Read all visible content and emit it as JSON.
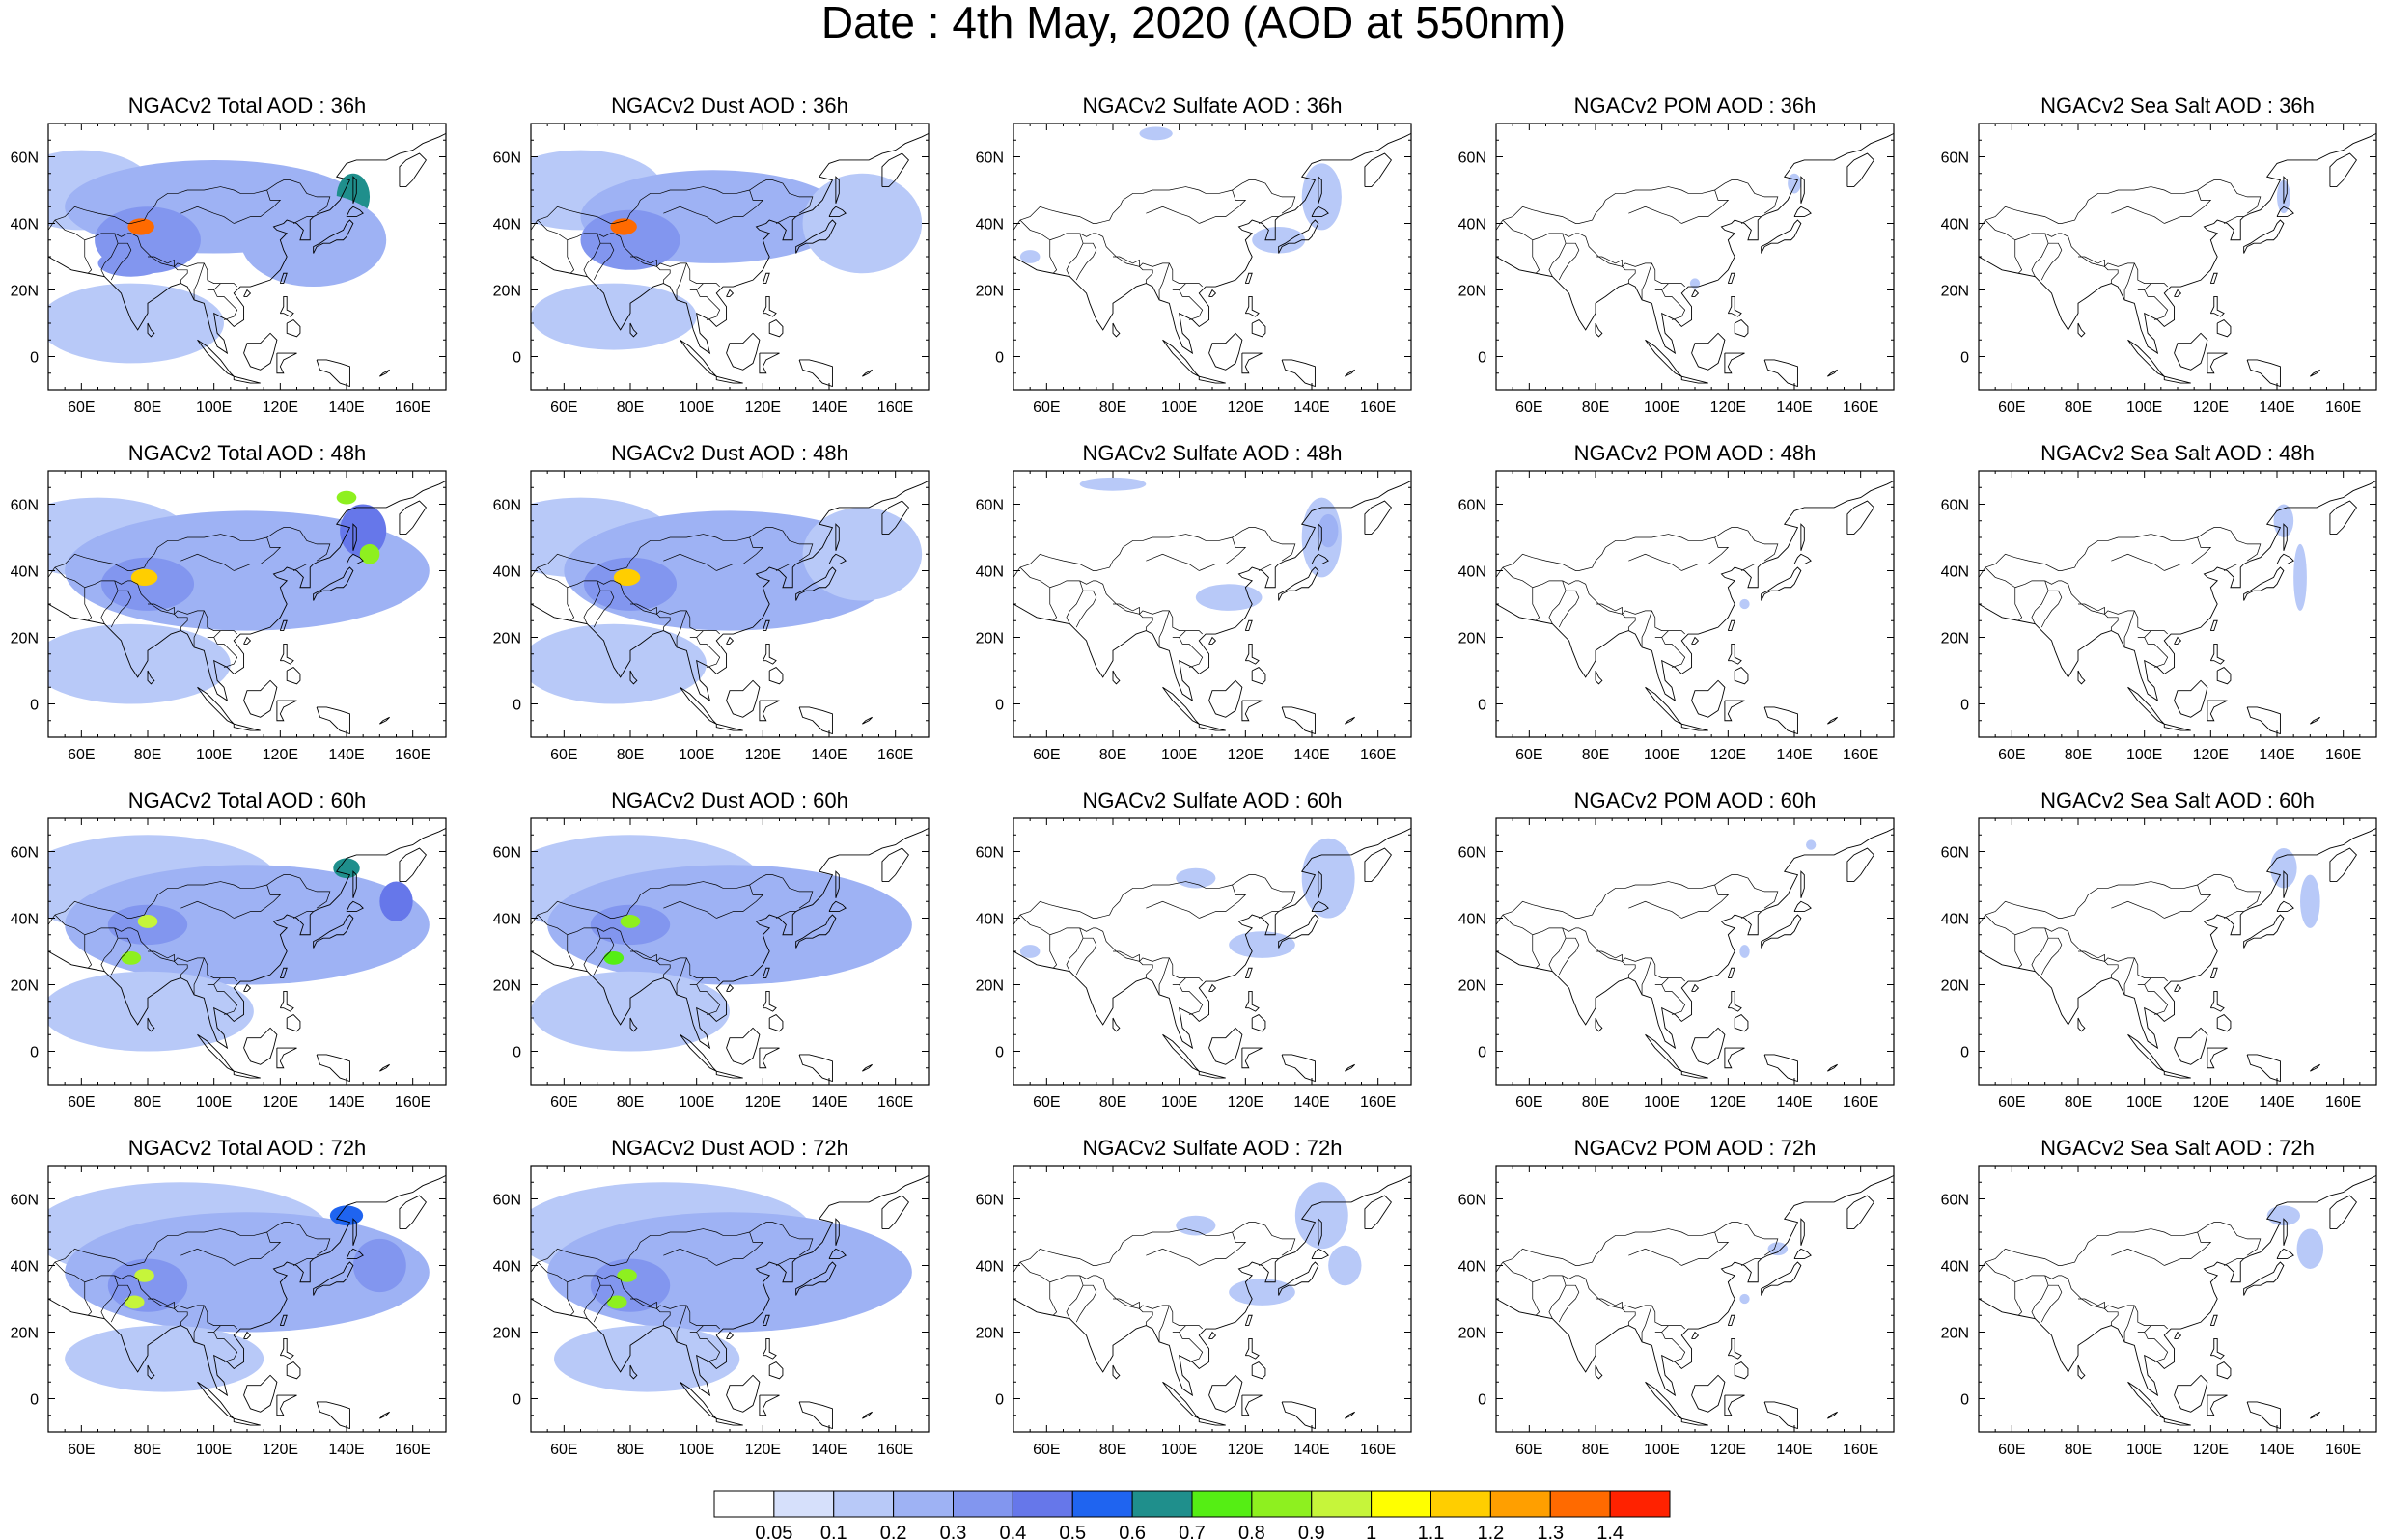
{
  "title": "Date : 4th May, 2020 (AOD at 550nm)",
  "species": [
    "Total",
    "Dust",
    "Sulfate",
    "POM",
    "Sea Salt"
  ],
  "forecast_hours": [
    "36h",
    "48h",
    "60h",
    "72h"
  ],
  "panels": [
    {
      "title": "NGACv2 Total AOD : 36h",
      "species": "Total",
      "hour": "36h"
    },
    {
      "title": "NGACv2 Dust AOD : 36h",
      "species": "Dust",
      "hour": "36h"
    },
    {
      "title": "NGACv2 Sulfate AOD : 36h",
      "species": "Sulfate",
      "hour": "36h"
    },
    {
      "title": "NGACv2 POM AOD : 36h",
      "species": "POM",
      "hour": "36h"
    },
    {
      "title": "NGACv2 Sea Salt AOD : 36h",
      "species": "Sea Salt",
      "hour": "36h"
    },
    {
      "title": "NGACv2 Total AOD : 48h",
      "species": "Total",
      "hour": "48h"
    },
    {
      "title": "NGACv2 Dust AOD : 48h",
      "species": "Dust",
      "hour": "48h"
    },
    {
      "title": "NGACv2 Sulfate AOD : 48h",
      "species": "Sulfate",
      "hour": "48h"
    },
    {
      "title": "NGACv2 POM AOD : 48h",
      "species": "POM",
      "hour": "48h"
    },
    {
      "title": "NGACv2 Sea Salt AOD : 48h",
      "species": "Sea Salt",
      "hour": "48h"
    },
    {
      "title": "NGACv2 Total AOD : 60h",
      "species": "Total",
      "hour": "60h"
    },
    {
      "title": "NGACv2 Dust AOD : 60h",
      "species": "Dust",
      "hour": "60h"
    },
    {
      "title": "NGACv2 Sulfate AOD : 60h",
      "species": "Sulfate",
      "hour": "60h"
    },
    {
      "title": "NGACv2 POM AOD : 60h",
      "species": "POM",
      "hour": "60h"
    },
    {
      "title": "NGACv2 Sea Salt AOD : 60h",
      "species": "Sea Salt",
      "hour": "60h"
    },
    {
      "title": "NGACv2 Total AOD : 72h",
      "species": "Total",
      "hour": "72h"
    },
    {
      "title": "NGACv2 Dust AOD : 72h",
      "species": "Dust",
      "hour": "72h"
    },
    {
      "title": "NGACv2 Sulfate AOD : 72h",
      "species": "Sulfate",
      "hour": "72h"
    },
    {
      "title": "NGACv2 POM AOD : 72h",
      "species": "POM",
      "hour": "72h"
    },
    {
      "title": "NGACv2 Sea Salt  AOD : 72h",
      "species": "Sea Salt",
      "hour": "72h"
    }
  ],
  "map_extent": {
    "lon_min": 50,
    "lon_max": 170,
    "lat_min": -10,
    "lat_max": 70
  },
  "x_ticks": [
    {
      "value": 60,
      "label": "60E"
    },
    {
      "value": 80,
      "label": "80E"
    },
    {
      "value": 100,
      "label": "100E"
    },
    {
      "value": 120,
      "label": "120E"
    },
    {
      "value": 140,
      "label": "140E"
    },
    {
      "value": 160,
      "label": "160E"
    }
  ],
  "y_ticks": [
    {
      "value": 0,
      "label": "0"
    },
    {
      "value": 20,
      "label": "20N"
    },
    {
      "value": 40,
      "label": "40N"
    },
    {
      "value": 60,
      "label": "60N"
    }
  ],
  "colorbar": {
    "labels": [
      "0.05",
      "0.1",
      "0.2",
      "0.3",
      "0.4",
      "0.5",
      "0.6",
      "0.7",
      "0.8",
      "0.9",
      "1",
      "1.1",
      "1.2",
      "1.3",
      "1.4"
    ],
    "colors": [
      "#ffffff",
      "#d6e0fb",
      "#b8c9f8",
      "#9eb2f4",
      "#8296ef",
      "#6677ea",
      "#1f64f0",
      "#1f8f8c",
      "#55ee14",
      "#8ef01f",
      "#c6f53a",
      "#ffff00",
      "#ffce00",
      "#ff9f00",
      "#ff6a00",
      "#ff2200"
    ]
  },
  "aod_fields": {
    "Total": {
      "36h": [
        {
          "lon": 60,
          "lat": 50,
          "value": 0.1,
          "rlon": 22,
          "rlat": 12
        },
        {
          "lon": 100,
          "lat": 45,
          "value": 0.2,
          "rlon": 45,
          "rlat": 14
        },
        {
          "lon": 80,
          "lat": 35,
          "value": 0.3,
          "rlon": 16,
          "rlat": 10
        },
        {
          "lon": 78,
          "lat": 39,
          "value": 1.3,
          "rlon": 4,
          "rlat": 2.5
        },
        {
          "lon": 75,
          "lat": 28,
          "value": 0.3,
          "rlon": 10,
          "rlat": 4
        },
        {
          "lon": 142,
          "lat": 48,
          "value": 0.6,
          "rlon": 5,
          "rlat": 7
        },
        {
          "lon": 130,
          "lat": 35,
          "value": 0.2,
          "rlon": 22,
          "rlat": 14
        },
        {
          "lon": 75,
          "lat": 10,
          "value": 0.1,
          "rlon": 28,
          "rlat": 12
        }
      ],
      "48h": [
        {
          "lon": 65,
          "lat": 50,
          "value": 0.1,
          "rlon": 28,
          "rlat": 12
        },
        {
          "lon": 110,
          "lat": 40,
          "value": 0.2,
          "rlon": 55,
          "rlat": 18
        },
        {
          "lon": 80,
          "lat": 36,
          "value": 0.3,
          "rlon": 14,
          "rlat": 8
        },
        {
          "lon": 79,
          "lat": 38,
          "value": 1.1,
          "rlon": 4,
          "rlat": 2.5
        },
        {
          "lon": 145,
          "lat": 52,
          "value": 0.4,
          "rlon": 7,
          "rlat": 8
        },
        {
          "lon": 147,
          "lat": 45,
          "value": 0.8,
          "rlon": 3,
          "rlat": 3
        },
        {
          "lon": 140,
          "lat": 62,
          "value": 0.8,
          "rlon": 3,
          "rlat": 2
        },
        {
          "lon": 75,
          "lat": 12,
          "value": 0.1,
          "rlon": 30,
          "rlat": 12
        }
      ],
      "60h": [
        {
          "lon": 80,
          "lat": 50,
          "value": 0.1,
          "rlon": 40,
          "rlat": 15
        },
        {
          "lon": 110,
          "lat": 38,
          "value": 0.2,
          "rlon": 55,
          "rlat": 18
        },
        {
          "lon": 80,
          "lat": 38,
          "value": 0.3,
          "rlon": 12,
          "rlat": 6
        },
        {
          "lon": 80,
          "lat": 39,
          "value": 0.9,
          "rlon": 3,
          "rlat": 2
        },
        {
          "lon": 75,
          "lat": 28,
          "value": 0.8,
          "rlon": 3,
          "rlat": 2
        },
        {
          "lon": 140,
          "lat": 55,
          "value": 0.6,
          "rlon": 4,
          "rlat": 3
        },
        {
          "lon": 155,
          "lat": 45,
          "value": 0.4,
          "rlon": 5,
          "rlat": 6
        },
        {
          "lon": 80,
          "lat": 12,
          "value": 0.1,
          "rlon": 32,
          "rlat": 12
        }
      ],
      "72h": [
        {
          "lon": 90,
          "lat": 50,
          "value": 0.1,
          "rlon": 45,
          "rlat": 15
        },
        {
          "lon": 110,
          "lat": 38,
          "value": 0.2,
          "rlon": 55,
          "rlat": 18
        },
        {
          "lon": 80,
          "lat": 34,
          "value": 0.3,
          "rlon": 12,
          "rlat": 8
        },
        {
          "lon": 79,
          "lat": 37,
          "value": 0.9,
          "rlon": 3,
          "rlat": 2
        },
        {
          "lon": 76,
          "lat": 29,
          "value": 0.9,
          "rlon": 3,
          "rlat": 2
        },
        {
          "lon": 140,
          "lat": 55,
          "value": 0.5,
          "rlon": 5,
          "rlat": 3
        },
        {
          "lon": 150,
          "lat": 40,
          "value": 0.3,
          "rlon": 8,
          "rlat": 8
        },
        {
          "lon": 85,
          "lat": 12,
          "value": 0.1,
          "rlon": 30,
          "rlat": 10
        }
      ]
    },
    "Dust": {
      "36h": [
        {
          "lon": 65,
          "lat": 50,
          "value": 0.1,
          "rlon": 25,
          "rlat": 12
        },
        {
          "lon": 105,
          "lat": 42,
          "value": 0.2,
          "rlon": 40,
          "rlat": 14
        },
        {
          "lon": 80,
          "lat": 35,
          "value": 0.3,
          "rlon": 15,
          "rlat": 9
        },
        {
          "lon": 78,
          "lat": 39,
          "value": 1.3,
          "rlon": 4,
          "rlat": 2.5
        },
        {
          "lon": 150,
          "lat": 40,
          "value": 0.1,
          "rlon": 18,
          "rlat": 15
        },
        {
          "lon": 75,
          "lat": 12,
          "value": 0.1,
          "rlon": 25,
          "rlat": 10
        }
      ],
      "48h": [
        {
          "lon": 65,
          "lat": 50,
          "value": 0.1,
          "rlon": 28,
          "rlat": 12
        },
        {
          "lon": 110,
          "lat": 40,
          "value": 0.2,
          "rlon": 50,
          "rlat": 18
        },
        {
          "lon": 80,
          "lat": 36,
          "value": 0.3,
          "rlon": 14,
          "rlat": 8
        },
        {
          "lon": 79,
          "lat": 38,
          "value": 1.1,
          "rlon": 4,
          "rlat": 2.5
        },
        {
          "lon": 150,
          "lat": 45,
          "value": 0.1,
          "rlon": 18,
          "rlat": 14
        },
        {
          "lon": 75,
          "lat": 12,
          "value": 0.1,
          "rlon": 28,
          "rlat": 12
        }
      ],
      "60h": [
        {
          "lon": 80,
          "lat": 50,
          "value": 0.1,
          "rlon": 40,
          "rlat": 15
        },
        {
          "lon": 110,
          "lat": 38,
          "value": 0.2,
          "rlon": 55,
          "rlat": 18
        },
        {
          "lon": 80,
          "lat": 38,
          "value": 0.3,
          "rlon": 12,
          "rlat": 6
        },
        {
          "lon": 80,
          "lat": 39,
          "value": 0.8,
          "rlon": 3,
          "rlat": 2
        },
        {
          "lon": 75,
          "lat": 28,
          "value": 0.7,
          "rlon": 3,
          "rlat": 2
        },
        {
          "lon": 80,
          "lat": 12,
          "value": 0.1,
          "rlon": 30,
          "rlat": 12
        }
      ],
      "72h": [
        {
          "lon": 90,
          "lat": 50,
          "value": 0.1,
          "rlon": 45,
          "rlat": 15
        },
        {
          "lon": 110,
          "lat": 38,
          "value": 0.2,
          "rlon": 55,
          "rlat": 18
        },
        {
          "lon": 80,
          "lat": 34,
          "value": 0.3,
          "rlon": 12,
          "rlat": 8
        },
        {
          "lon": 79,
          "lat": 37,
          "value": 0.8,
          "rlon": 3,
          "rlat": 2
        },
        {
          "lon": 76,
          "lat": 29,
          "value": 0.8,
          "rlon": 3,
          "rlat": 2
        },
        {
          "lon": 85,
          "lat": 12,
          "value": 0.1,
          "rlon": 28,
          "rlat": 10
        }
      ]
    },
    "Sulfate": {
      "36h": [
        {
          "lon": 143,
          "lat": 48,
          "value": 0.1,
          "rlon": 6,
          "rlat": 10
        },
        {
          "lon": 130,
          "lat": 35,
          "value": 0.1,
          "rlon": 8,
          "rlat": 4
        },
        {
          "lon": 93,
          "lat": 67,
          "value": 0.1,
          "rlon": 5,
          "rlat": 2
        },
        {
          "lon": 55,
          "lat": 30,
          "value": 0.1,
          "rlon": 3,
          "rlat": 2
        }
      ],
      "48h": [
        {
          "lon": 143,
          "lat": 50,
          "value": 0.1,
          "rlon": 6,
          "rlat": 12
        },
        {
          "lon": 145,
          "lat": 52,
          "value": 0.2,
          "rlon": 3,
          "rlat": 5
        },
        {
          "lon": 115,
          "lat": 32,
          "value": 0.1,
          "rlon": 10,
          "rlat": 4
        },
        {
          "lon": 80,
          "lat": 66,
          "value": 0.1,
          "rlon": 10,
          "rlat": 2
        }
      ],
      "60h": [
        {
          "lon": 145,
          "lat": 52,
          "value": 0.1,
          "rlon": 8,
          "rlat": 12
        },
        {
          "lon": 125,
          "lat": 32,
          "value": 0.1,
          "rlon": 10,
          "rlat": 4
        },
        {
          "lon": 105,
          "lat": 52,
          "value": 0.1,
          "rlon": 6,
          "rlat": 3
        },
        {
          "lon": 55,
          "lat": 30,
          "value": 0.1,
          "rlon": 3,
          "rlat": 2
        }
      ],
      "72h": [
        {
          "lon": 143,
          "lat": 55,
          "value": 0.1,
          "rlon": 8,
          "rlat": 10
        },
        {
          "lon": 150,
          "lat": 40,
          "value": 0.1,
          "rlon": 5,
          "rlat": 6
        },
        {
          "lon": 125,
          "lat": 32,
          "value": 0.1,
          "rlon": 10,
          "rlat": 4
        },
        {
          "lon": 105,
          "lat": 52,
          "value": 0.1,
          "rlon": 6,
          "rlat": 3
        }
      ]
    },
    "POM": {
      "36h": [
        {
          "lon": 140,
          "lat": 52,
          "value": 0.1,
          "rlon": 2,
          "rlat": 3
        },
        {
          "lon": 110,
          "lat": 22,
          "value": 0.1,
          "rlon": 1.5,
          "rlat": 1.5
        }
      ],
      "48h": [
        {
          "lon": 125,
          "lat": 30,
          "value": 0.1,
          "rlon": 1.5,
          "rlat": 1.5
        }
      ],
      "60h": [
        {
          "lon": 125,
          "lat": 30,
          "value": 0.1,
          "rlon": 1.5,
          "rlat": 2
        },
        {
          "lon": 145,
          "lat": 62,
          "value": 0.1,
          "rlon": 1.5,
          "rlat": 1.5
        }
      ],
      "72h": [
        {
          "lon": 135,
          "lat": 45,
          "value": 0.1,
          "rlon": 3,
          "rlat": 2
        },
        {
          "lon": 125,
          "lat": 30,
          "value": 0.1,
          "rlon": 1.5,
          "rlat": 1.5
        }
      ]
    },
    "Sea Salt": {
      "36h": [
        {
          "lon": 142,
          "lat": 48,
          "value": 0.1,
          "rlon": 2,
          "rlat": 5
        }
      ],
      "48h": [
        {
          "lon": 142,
          "lat": 55,
          "value": 0.1,
          "rlon": 3,
          "rlat": 5
        },
        {
          "lon": 147,
          "lat": 38,
          "value": 0.1,
          "rlon": 2,
          "rlat": 10
        }
      ],
      "60h": [
        {
          "lon": 142,
          "lat": 55,
          "value": 0.1,
          "rlon": 4,
          "rlat": 6
        },
        {
          "lon": 150,
          "lat": 45,
          "value": 0.1,
          "rlon": 3,
          "rlat": 8
        }
      ],
      "72h": [
        {
          "lon": 142,
          "lat": 55,
          "value": 0.1,
          "rlon": 5,
          "rlat": 3
        },
        {
          "lon": 150,
          "lat": 45,
          "value": 0.1,
          "rlon": 4,
          "rlat": 6
        }
      ]
    }
  }
}
